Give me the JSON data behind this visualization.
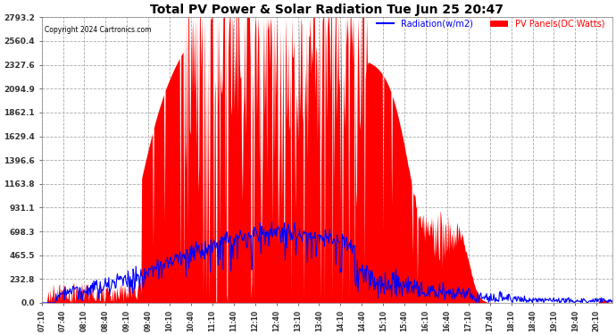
{
  "title": "Total PV Power & Solar Radiation Tue Jun 25 20:47",
  "copyright": "Copyright 2024 Cartronics.com",
  "legend_radiation": "Radiation(w/m2)",
  "legend_pv": "PV Panels(DC Watts)",
  "y_ticks": [
    0.0,
    232.8,
    465.5,
    698.3,
    931.1,
    1163.8,
    1396.6,
    1629.4,
    1862.1,
    2094.9,
    2327.6,
    2560.4,
    2793.2
  ],
  "y_max": 2793.2,
  "bg_color": "#ffffff",
  "plot_bg_color": "#ffffff",
  "grid_color": "#aaaaaa",
  "red_fill_color": "#ff0000",
  "blue_line_color": "#0000ff",
  "title_color": "#000000",
  "copyright_color": "#000000",
  "radiation_legend_color": "#0000ff",
  "pv_legend_color": "#ff0000"
}
